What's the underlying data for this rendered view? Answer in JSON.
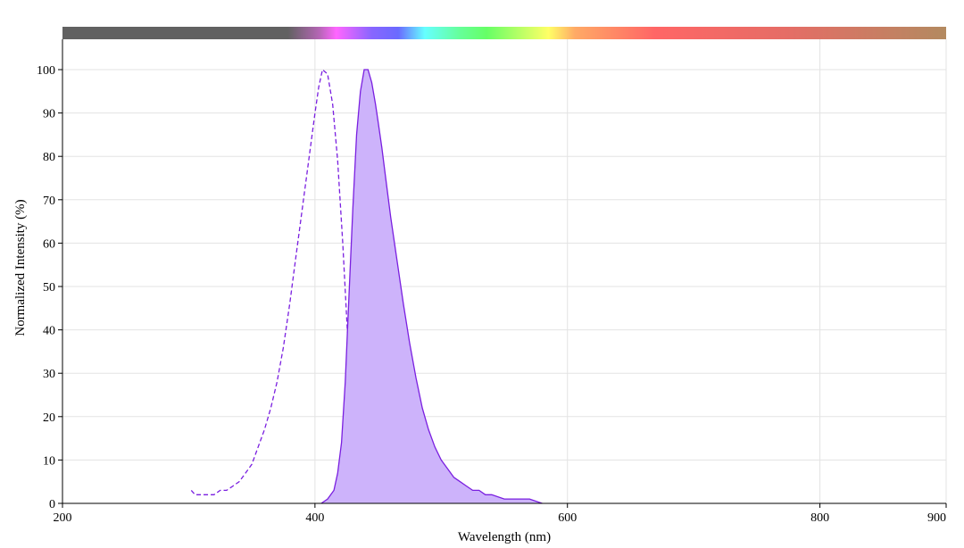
{
  "chart_data": {
    "type": "area",
    "title": "",
    "xlabel": "Wavelength (nm)",
    "ylabel": "Normalized Intensity (%)",
    "xlim": [
      200,
      900
    ],
    "ylim": [
      0,
      100
    ],
    "grid": true,
    "x_ticks": [
      200,
      400,
      600,
      800,
      900
    ],
    "y_ticks": [
      0,
      10,
      20,
      30,
      40,
      50,
      60,
      70,
      80,
      90,
      100
    ],
    "spectrum_bar_colors": {
      "uv": "#616161",
      "violet": "#ff66ff",
      "blue": "#6a6aff",
      "cyan": "#66ffff",
      "green": "#66ff66",
      "yellow": "#ffff66",
      "orange": "#ffaa66",
      "red": "#ff6666",
      "far_red": "#b38a60"
    },
    "series": [
      {
        "style": "dashed",
        "color": "#7a1fe0",
        "x": [
          302,
          305,
          310,
          315,
          320,
          325,
          330,
          335,
          340,
          345,
          350,
          355,
          360,
          365,
          370,
          375,
          380,
          385,
          390,
          395,
          400,
          403,
          406,
          410,
          414,
          418,
          422,
          426,
          430,
          434,
          438,
          442,
          446,
          449
        ],
        "y": [
          3,
          2,
          2,
          2,
          2,
          3,
          3,
          4,
          5,
          7,
          9,
          13,
          17,
          22,
          28,
          36,
          46,
          57,
          68,
          79,
          90,
          96,
          100,
          99,
          92,
          79,
          60,
          38,
          20,
          9,
          4,
          2,
          1,
          0
        ]
      },
      {
        "style": "solid-filled",
        "color": "#7a1fe0",
        "fill": "#cdb3fb",
        "x": [
          405,
          410,
          415,
          418,
          421,
          424,
          427,
          430,
          433,
          436,
          439,
          442,
          445,
          448,
          450,
          453,
          456,
          460,
          465,
          470,
          475,
          480,
          485,
          490,
          495,
          500,
          505,
          510,
          515,
          520,
          525,
          530,
          535,
          540,
          550,
          560,
          570,
          580
        ],
        "y": [
          0,
          1,
          3,
          7,
          14,
          28,
          48,
          68,
          85,
          95,
          100,
          100,
          97,
          92,
          88,
          82,
          75,
          66,
          56,
          46,
          37,
          29,
          22,
          17,
          13,
          10,
          8,
          6,
          5,
          4,
          3,
          3,
          2,
          2,
          1,
          1,
          1,
          0
        ]
      }
    ]
  }
}
